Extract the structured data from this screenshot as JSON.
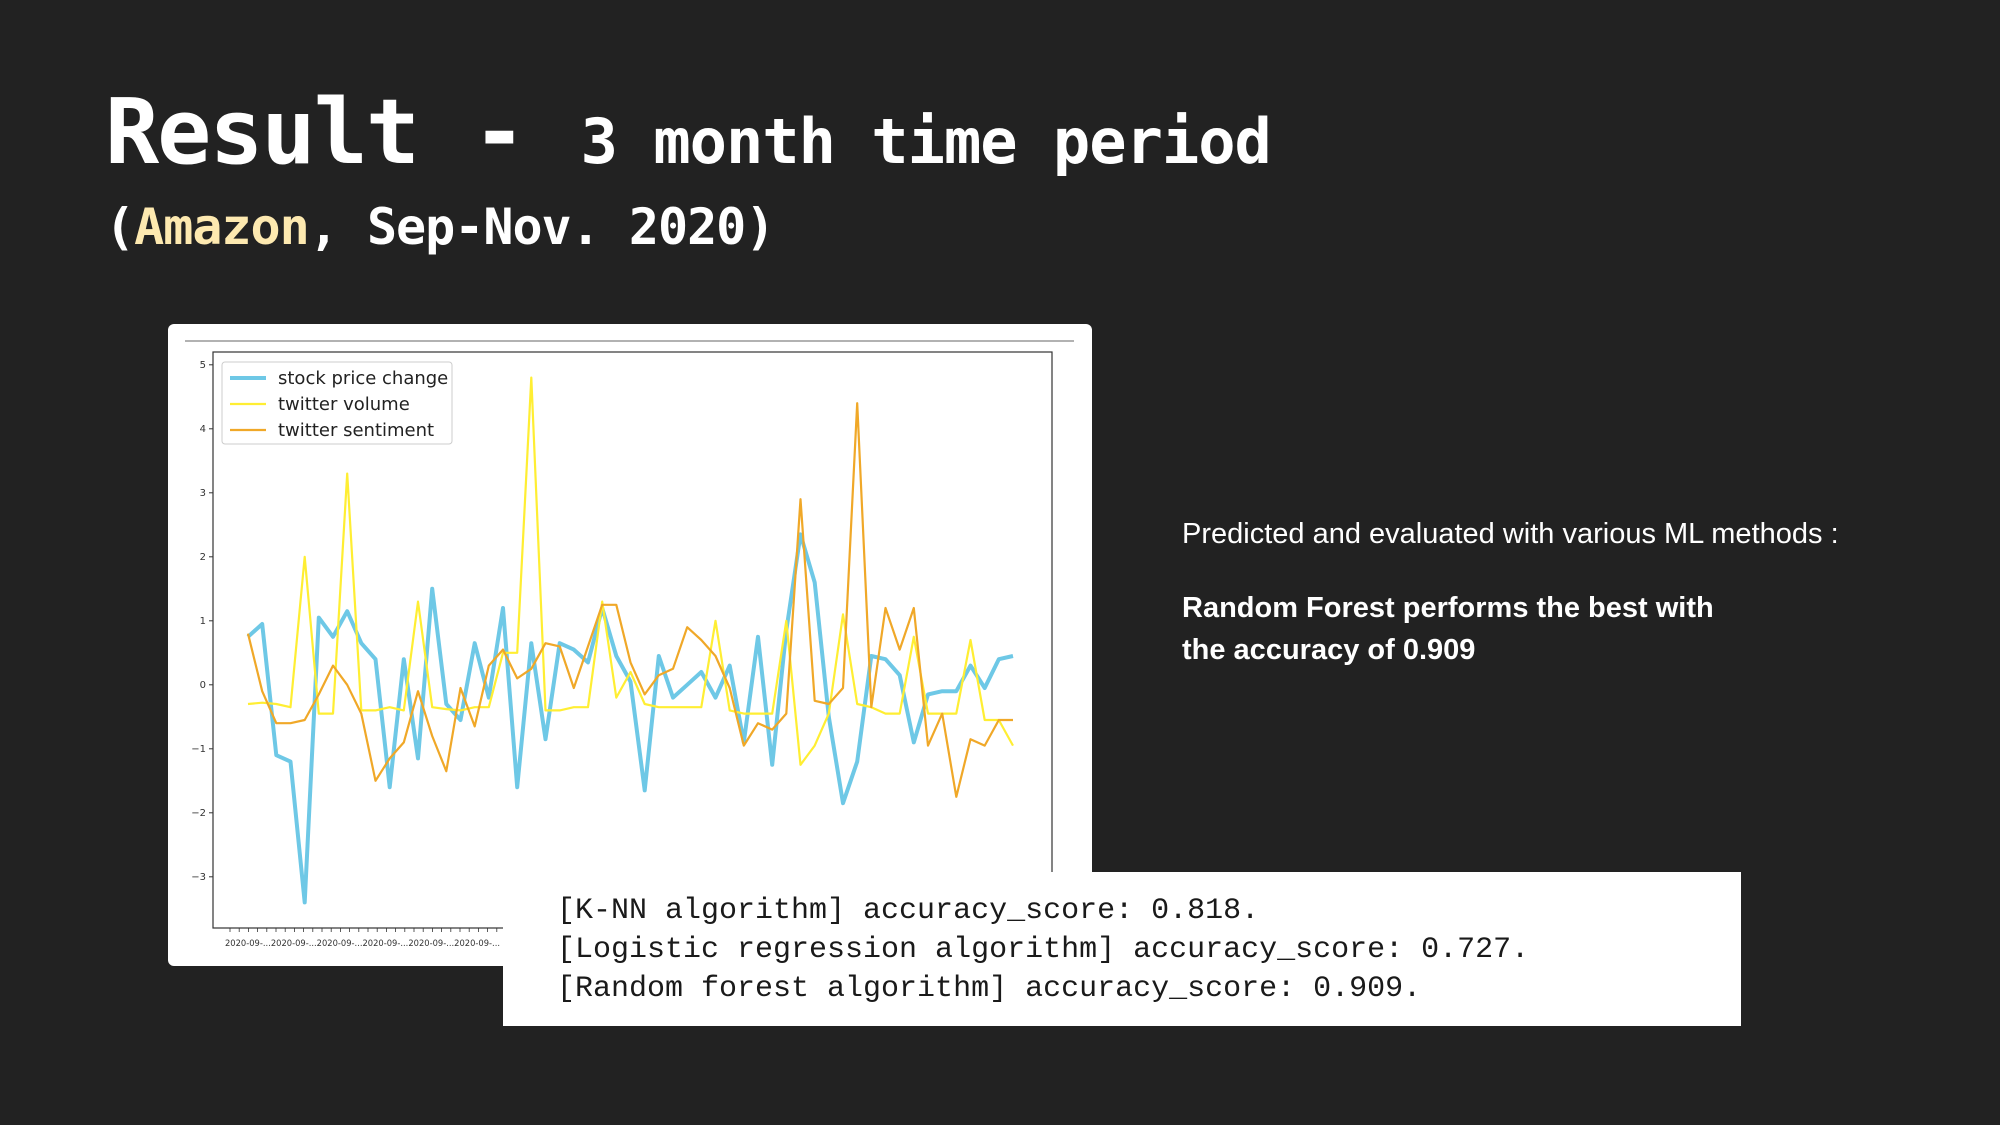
{
  "slide": {
    "title_main": "Result",
    "title_sep": " - ",
    "title_rest": "3 month time period",
    "subtitle_open": "(",
    "subtitle_company": "Amazon",
    "subtitle_rest": ", Sep-Nov. 2020)",
    "subtitle_highlight_color": "#fde9b0"
  },
  "description": {
    "intro": "Predicted and evaluated with various ML methods :",
    "finding_line1": "Random Forest performs the best with",
    "finding_line2": "the accuracy of 0.909"
  },
  "results": {
    "line1": "[K-NN algorithm] accuracy_score: 0.818.",
    "line2": "[Logistic regression algorithm] accuracy_score: 0.727.",
    "line3": "[Random forest algorithm] accuracy_score: 0.909."
  },
  "chart_data": {
    "type": "line",
    "title": "",
    "xlabel": "",
    "ylabel": "",
    "ylim": [
      -3.8,
      5.2
    ],
    "yticks": [
      -3,
      -2,
      -1,
      0,
      1,
      2,
      3,
      4,
      5
    ],
    "legend_position": "top-left",
    "grid": false,
    "x_tick_text": "2020-09-...",
    "series": [
      {
        "name": "stock price change",
        "color": "#6ec8e6",
        "values": [
          0.75,
          0.95,
          -1.1,
          -1.2,
          -3.4,
          1.05,
          0.75,
          1.15,
          0.65,
          0.4,
          -1.6,
          0.4,
          -1.15,
          1.5,
          -0.3,
          -0.55,
          0.65,
          -0.2,
          1.2,
          -1.6,
          0.65,
          -0.85,
          0.65,
          0.55,
          0.35,
          1.2,
          0.45,
          0.05,
          -1.65,
          0.45,
          -0.2,
          0.0,
          0.2,
          -0.2,
          0.3,
          -0.9,
          0.75,
          -1.25,
          0.85,
          2.35,
          1.6,
          -0.5,
          -1.85,
          -1.2,
          0.45,
          0.4,
          0.15,
          -0.9,
          -0.15,
          -0.1,
          -0.1,
          0.3,
          -0.05,
          0.4,
          0.45
        ]
      },
      {
        "name": "twitter volume",
        "color": "#ffee33",
        "values": [
          -0.3,
          -0.28,
          -0.3,
          -0.35,
          2.0,
          -0.45,
          -0.45,
          3.3,
          -0.4,
          -0.4,
          -0.35,
          -0.4,
          1.3,
          -0.35,
          -0.38,
          -0.4,
          -0.35,
          -0.35,
          0.5,
          0.5,
          4.8,
          -0.4,
          -0.4,
          -0.35,
          -0.35,
          1.3,
          -0.2,
          0.2,
          -0.3,
          -0.35,
          -0.35,
          -0.35,
          -0.35,
          1.0,
          -0.4,
          -0.45,
          -0.45,
          -0.45,
          1.0,
          -1.25,
          -0.95,
          -0.45,
          1.1,
          -0.3,
          -0.35,
          -0.45,
          -0.45,
          0.75,
          -0.45,
          -0.45,
          -0.45,
          0.7,
          -0.55,
          -0.55,
          -0.95
        ]
      },
      {
        "name": "twitter sentiment",
        "color": "#f0a828",
        "values": [
          0.8,
          -0.1,
          -0.6,
          -0.6,
          -0.55,
          -0.15,
          0.3,
          0.0,
          -0.45,
          -1.5,
          -1.15,
          -0.9,
          -0.1,
          -0.8,
          -1.35,
          -0.05,
          -0.65,
          0.3,
          0.55,
          0.1,
          0.25,
          0.65,
          0.6,
          -0.05,
          0.6,
          1.25,
          1.25,
          0.35,
          -0.15,
          0.15,
          0.25,
          0.9,
          0.7,
          0.45,
          -0.05,
          -0.95,
          -0.6,
          -0.7,
          -0.45,
          2.9,
          -0.25,
          -0.3,
          -0.05,
          4.4,
          -0.35,
          1.2,
          0.55,
          1.2,
          -0.95,
          -0.45,
          -1.75,
          -0.85,
          -0.95,
          -0.55,
          -0.55
        ]
      }
    ]
  }
}
